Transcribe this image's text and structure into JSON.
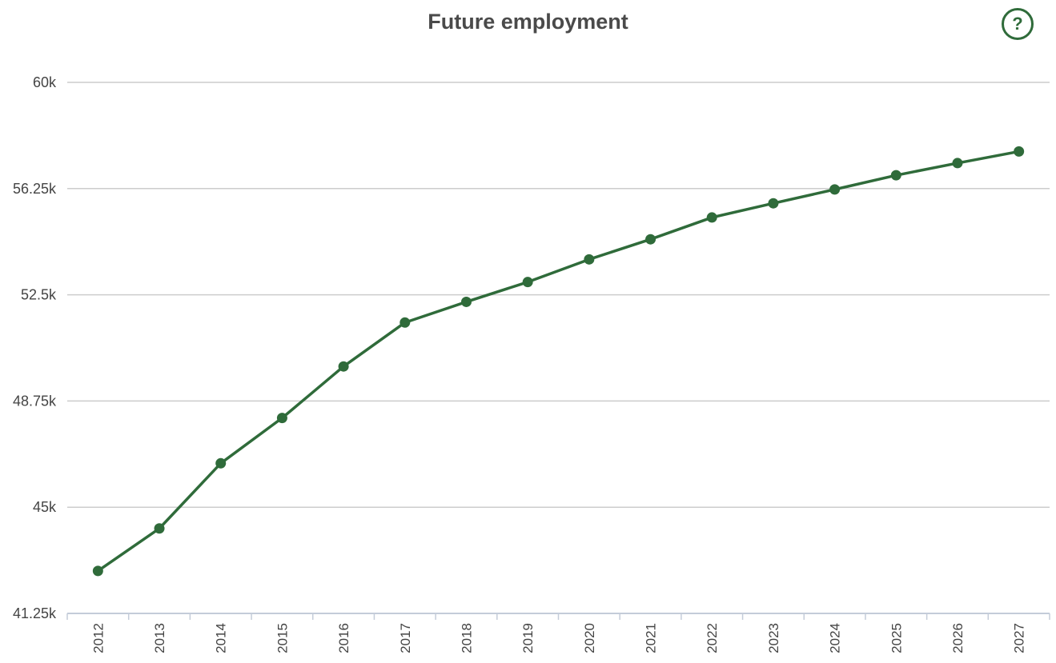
{
  "header": {
    "title": "Future employment",
    "help_label": "?"
  },
  "chart_data": {
    "type": "line",
    "title": "Future employment",
    "xlabel": "",
    "ylabel": "",
    "categories": [
      "2012",
      "2013",
      "2014",
      "2015",
      "2016",
      "2017",
      "2018",
      "2019",
      "2020",
      "2021",
      "2022",
      "2023",
      "2024",
      "2025",
      "2026",
      "2027"
    ],
    "series": [
      {
        "values": [
          42750,
          44250,
          46550,
          48150,
          49970,
          51520,
          52250,
          52950,
          53750,
          54460,
          55230,
          55730,
          56220,
          56720,
          57150,
          57560
        ]
      }
    ],
    "ylim": [
      41250,
      60000
    ],
    "yticks": [
      41250,
      45000,
      48750,
      52500,
      56250,
      60000
    ],
    "ytick_labels": [
      "41.25k",
      "45k",
      "48.75k",
      "52.5k",
      "56.25k",
      "60k"
    ],
    "grid": true,
    "legend": "none",
    "colors": {
      "line": "#2f6b3a",
      "grid": "#cccccc"
    }
  }
}
